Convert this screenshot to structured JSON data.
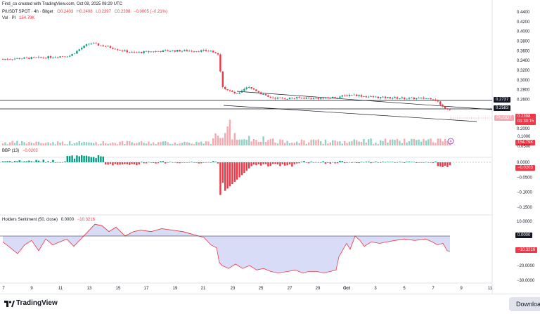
{
  "header": {
    "created_by": "Find_co created with TradingView.com, Oct 08, 2025 08:29 UTC",
    "symbol": "PIUSDT SPOT · 4h · Bitget",
    "ohlc": {
      "o_label": "O",
      "o": "0.2403",
      "h_label": "H",
      "h": "0.2408",
      "l_label": "L",
      "l": "0.2397",
      "c_label": "C",
      "c": "0.2398",
      "change": "−0.0005 (−0.21%)"
    },
    "volume_label": "Vol · PI",
    "volume_value": "154.79K"
  },
  "price_axis": {
    "ticks": [
      "0.4400",
      "0.4200",
      "0.4000",
      "0.3800",
      "0.3600",
      "0.3400",
      "0.3200",
      "0.3000",
      "0.2800",
      "0.2600",
      "0.2200",
      "0.2000"
    ],
    "level_tags": [
      "0.2737",
      "0.2583"
    ],
    "current_symbol": "PIUSDT",
    "current_price": "0.2398",
    "current_countdown": "01:30:15",
    "volume_tag": "154.79K",
    "vol_axis_label": "0.1000",
    "vol_axis_label2": "0.0500"
  },
  "bbp": {
    "label": "BBP (13)",
    "value": "−0.0203",
    "ticks": [
      "0.0000",
      "−0.0500",
      "−0.1000",
      "−0.1500"
    ],
    "tag": "−0.0203"
  },
  "holders": {
    "label": "Holders Sentiment (50, close)",
    "value1": "0.0000",
    "value2": "−10.3216",
    "ticks": [
      "10.0000",
      "−20.0000",
      "−30.0000"
    ],
    "tag_zero": "0.0000",
    "tag_value": "−10.3216"
  },
  "time_axis": {
    "labels": [
      "7",
      "9",
      "11",
      "13",
      "15",
      "17",
      "19",
      "21",
      "23",
      "25",
      "27",
      "29",
      "Oct",
      "3",
      "5",
      "7",
      "9",
      "11"
    ]
  },
  "footer": {
    "brand": "TradingView",
    "download": "Download"
  },
  "colors": {
    "up": "#089981",
    "down": "#f23645",
    "vol_up": "#8fd1c3",
    "vol_down": "#f7a9b0",
    "hs_fill": "#d9dcf7",
    "hs_line": "#4caf50"
  },
  "flag_icon_name": "lightning-icon"
}
